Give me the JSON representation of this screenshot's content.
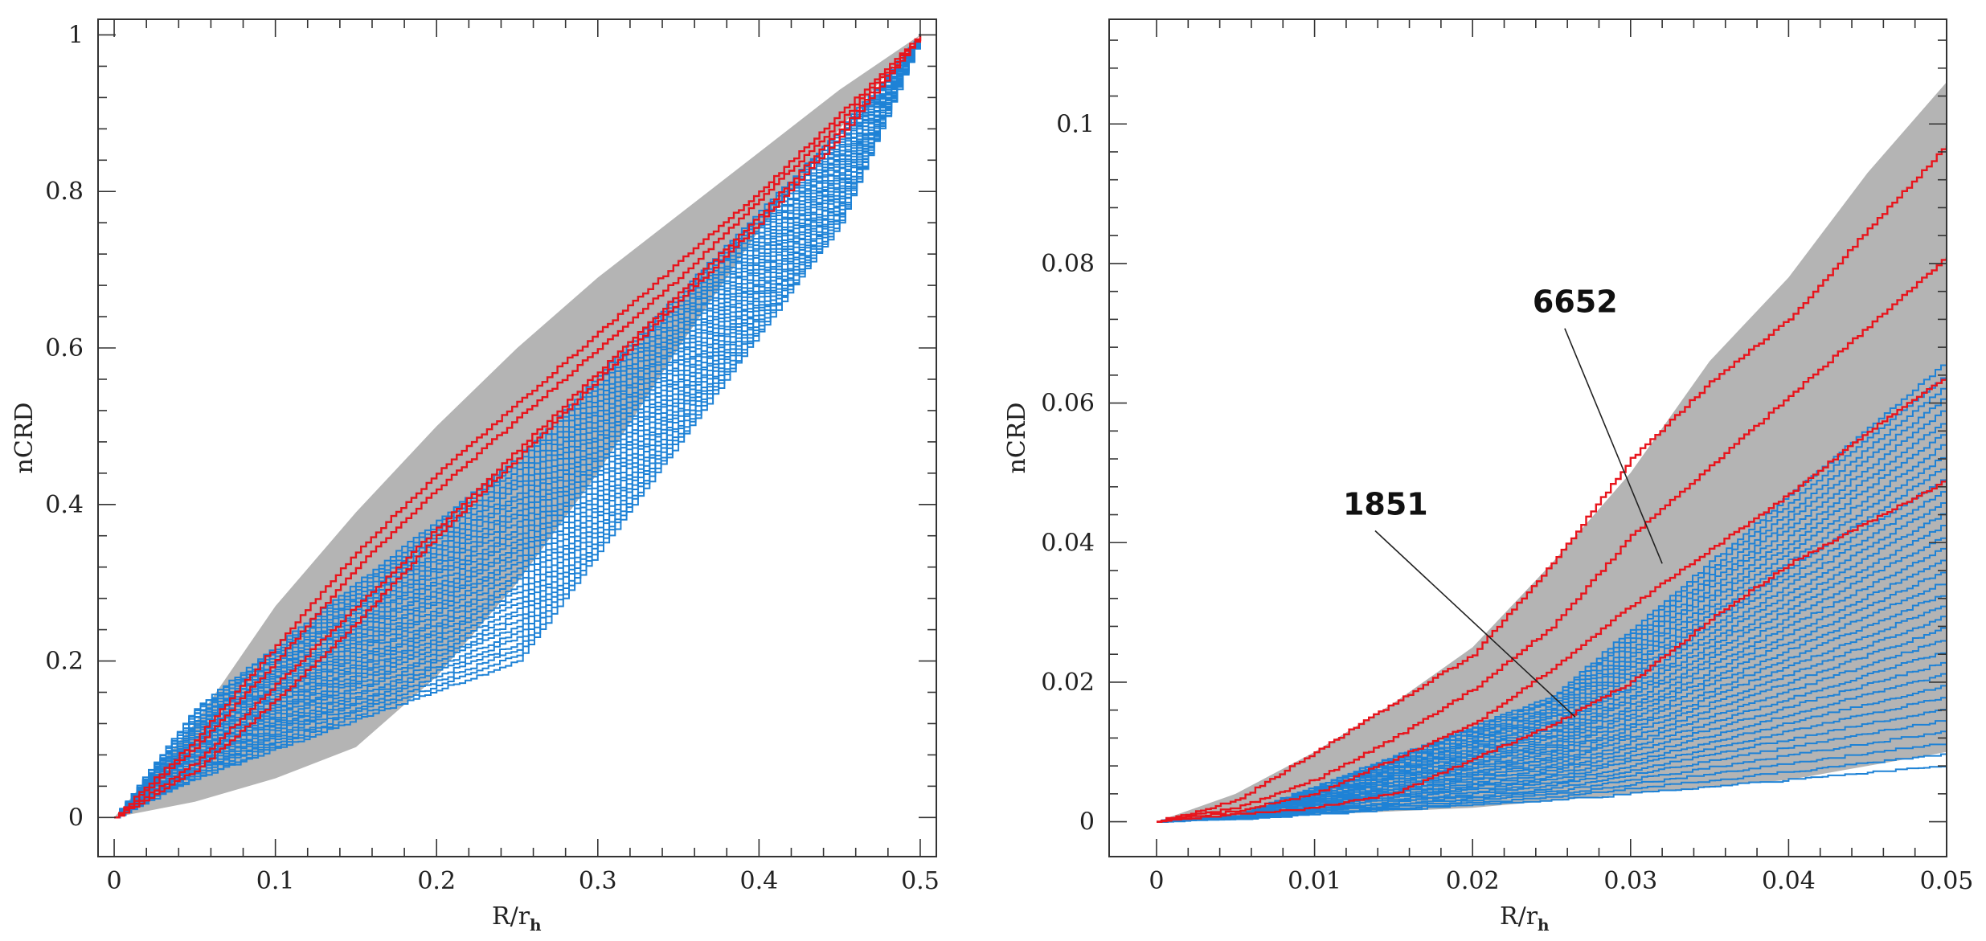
{
  "chart_data": [
    {
      "type": "line",
      "panel": "left",
      "xlabel": "R/r",
      "xlabel_sub": "h",
      "ylabel": "nCRD",
      "xlim": [
        -0.01,
        0.51
      ],
      "ylim": [
        -0.05,
        1.02
      ],
      "xticks": [
        0,
        0.1,
        0.2,
        0.3,
        0.4,
        0.5
      ],
      "xtick_labels": [
        "0",
        "0.1",
        "0.2",
        "0.3",
        "0.4",
        "0.5"
      ],
      "yticks": [
        0,
        0.2,
        0.4,
        0.6,
        0.8,
        1
      ],
      "ytick_labels": [
        "0",
        "0.2",
        "0.4",
        "0.6",
        "0.8",
        "1"
      ],
      "band": {
        "x": [
          0,
          0.05,
          0.1,
          0.15,
          0.2,
          0.25,
          0.3,
          0.35,
          0.4,
          0.45,
          0.5
        ],
        "upper": [
          0,
          0.12,
          0.27,
          0.39,
          0.5,
          0.6,
          0.69,
          0.77,
          0.85,
          0.93,
          1.0
        ],
        "lower": [
          0,
          0.02,
          0.05,
          0.09,
          0.18,
          0.3,
          0.44,
          0.6,
          0.75,
          0.88,
          1.0
        ]
      },
      "red_series": [
        {
          "name": "red-1",
          "y": [
            0,
            0.1,
            0.22,
            0.34,
            0.44,
            0.53,
            0.62,
            0.71,
            0.8,
            0.9,
            1.0
          ]
        },
        {
          "name": "red-2",
          "y": [
            0,
            0.09,
            0.2,
            0.32,
            0.42,
            0.51,
            0.6,
            0.69,
            0.79,
            0.89,
            1.0
          ]
        },
        {
          "name": "red-3",
          "y": [
            0,
            0.07,
            0.17,
            0.27,
            0.37,
            0.47,
            0.57,
            0.67,
            0.77,
            0.88,
            1.0
          ]
        },
        {
          "name": "red-4",
          "y": [
            0,
            0.06,
            0.15,
            0.25,
            0.36,
            0.46,
            0.56,
            0.66,
            0.76,
            0.87,
            1.0
          ]
        }
      ],
      "blue_count": 36,
      "blue_spread": {
        "start": [
          0.05,
          0.14
        ],
        "mid": [
          0.2,
          0.46
        ],
        "end": [
          0.76,
          0.88
        ]
      }
    },
    {
      "type": "line",
      "panel": "right",
      "xlabel": "R/r",
      "xlabel_sub": "h",
      "ylabel": "nCRD",
      "xlim": [
        -0.003,
        0.05
      ],
      "ylim": [
        -0.005,
        0.115
      ],
      "xticks": [
        0,
        0.01,
        0.02,
        0.03,
        0.04,
        0.05
      ],
      "xtick_labels": [
        "0",
        "0.01",
        "0.02",
        "0.03",
        "0.04",
        "0.05"
      ],
      "yticks": [
        0,
        0.02,
        0.04,
        0.06,
        0.08,
        0.1
      ],
      "ytick_labels": [
        "0",
        "0.02",
        "0.04",
        "0.06",
        "0.08",
        "0.1"
      ],
      "band": {
        "x": [
          0,
          0.005,
          0.01,
          0.015,
          0.02,
          0.025,
          0.03,
          0.035,
          0.04,
          0.045,
          0.05
        ],
        "upper": [
          0,
          0.004,
          0.01,
          0.017,
          0.025,
          0.037,
          0.05,
          0.066,
          0.078,
          0.093,
          0.106
        ],
        "lower": [
          0,
          0.0005,
          0.001,
          0.0015,
          0.002,
          0.003,
          0.004,
          0.005,
          0.006,
          0.008,
          0.01
        ]
      },
      "red_series": [
        {
          "name": "red-1",
          "y": [
            0,
            0.003,
            0.01,
            0.017,
            0.024,
            0.037,
            0.052,
            0.063,
            0.072,
            0.085,
            0.097
          ]
        },
        {
          "name": "red-2",
          "y": [
            0,
            0.002,
            0.006,
            0.012,
            0.019,
            0.028,
            0.041,
            0.051,
            0.061,
            0.071,
            0.081
          ]
        },
        {
          "name": "red-3",
          "y": [
            0,
            0.0015,
            0.004,
            0.009,
            0.014,
            0.022,
            0.031,
            0.039,
            0.047,
            0.056,
            0.064
          ]
        },
        {
          "name": "red-4",
          "y": [
            0,
            0.001,
            0.002,
            0.004,
            0.009,
            0.014,
            0.02,
            0.029,
            0.037,
            0.043,
            0.049
          ]
        }
      ],
      "blue_count": 36,
      "blue_spread": {
        "start": [
          0.0015,
          0.004
        ],
        "mid": [
          0.003,
          0.018
        ],
        "end": [
          0.008,
          0.066
        ]
      },
      "annotations": [
        {
          "text": "6652",
          "tx": 0.0238,
          "ty": 0.073,
          "px": 0.032,
          "py": 0.037
        },
        {
          "text": "1851",
          "tx": 0.0118,
          "ty": 0.044,
          "px": 0.0265,
          "py": 0.015
        }
      ]
    }
  ],
  "colors": {
    "band": "#b4b4b4",
    "red": "#e8141c",
    "blue": "#1e82d6",
    "axis": "#333333"
  }
}
